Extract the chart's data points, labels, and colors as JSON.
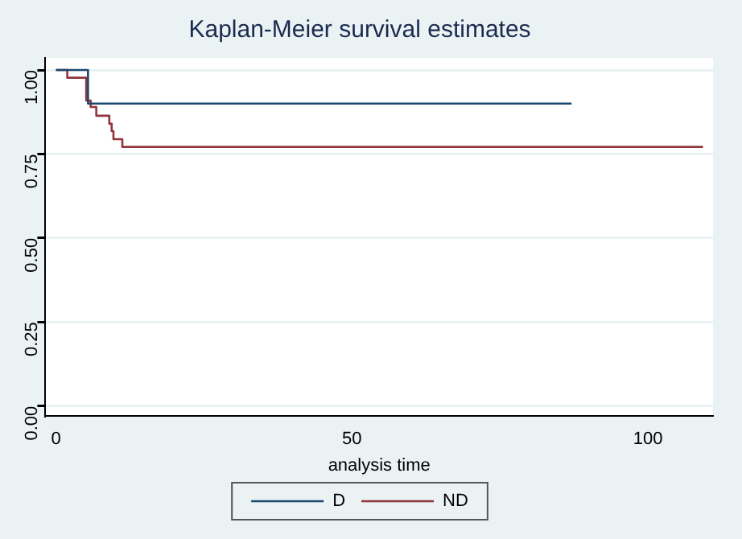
{
  "chart_data": {
    "type": "step",
    "title": "Kaplan-Meier survival estimates",
    "xlabel": "analysis time",
    "xlim": [
      -1.8,
      111
    ],
    "xticks": [
      0,
      50,
      100
    ],
    "ylim": [
      -0.03,
      1.036
    ],
    "yticks": [
      {
        "value": 0,
        "label": "0.00"
      },
      {
        "value": 0.25,
        "label": "0.25"
      },
      {
        "value": 0.5,
        "label": "0.50"
      },
      {
        "value": 0.75,
        "label": "0.75"
      },
      {
        "value": 1,
        "label": "1.00"
      }
    ],
    "grid": "y",
    "legend": "bottom",
    "marker": "none",
    "line_style": "solid",
    "series": [
      {
        "name": "D",
        "color": "#1a476f",
        "x": [
          0,
          5.4,
          87.1
        ],
        "values": [
          1,
          0.9,
          0.9
        ]
      },
      {
        "name": "ND",
        "color": "#90353b",
        "x": [
          0,
          1.9,
          5.1,
          5.85,
          6.8,
          9,
          9.4,
          9.7,
          11.2,
          109.3
        ],
        "values": [
          1,
          0.977,
          0.909,
          0.89,
          0.864,
          0.84,
          0.818,
          0.794,
          0.771,
          0.771
        ]
      }
    ]
  }
}
